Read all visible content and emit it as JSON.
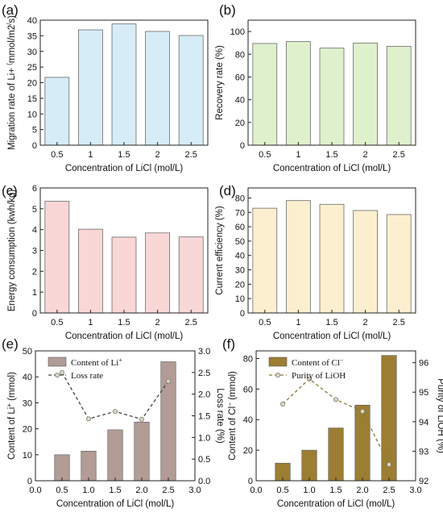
{
  "panels": [
    {
      "id": "a",
      "letter": "(a)",
      "chart_data": {
        "type": "bar",
        "categories": [
          "0.5",
          "1",
          "1.5",
          "2",
          "2.5"
        ],
        "values": [
          21.7,
          36.9,
          38.8,
          36.4,
          35.1
        ],
        "ylim": [
          0,
          40
        ],
        "yticks": [
          "0",
          "5",
          "10",
          "15",
          "20",
          "25",
          "30",
          "35",
          "40"
        ],
        "xlabel": "Concentration of LiCl (mol/L)",
        "ylabel": "Migration rate of Li+ (mmol/m2/s)",
        "bar_fill": "#d6ecf7",
        "bar_stroke": "#6b6b6b"
      }
    },
    {
      "id": "b",
      "letter": "(b)",
      "chart_data": {
        "type": "bar",
        "categories": [
          "0.5",
          "1",
          "1.5",
          "2",
          "2.5"
        ],
        "values": [
          89.5,
          91.2,
          85.4,
          89.9,
          87.0
        ],
        "ylim": [
          0,
          110
        ],
        "yticks": [
          "0",
          "20",
          "40",
          "60",
          "80",
          "100"
        ],
        "xlabel": "Concentration of LiCl (mol/L)",
        "ylabel": "Recovery rate (%)",
        "bar_fill": "#dff0cd",
        "bar_stroke": "#6b6b6b"
      }
    },
    {
      "id": "c",
      "letter": "(c)",
      "chart_data": {
        "type": "bar",
        "categories": [
          "0.5",
          "1",
          "1.5",
          "2",
          "2.5"
        ],
        "values": [
          5.36,
          4.02,
          3.64,
          3.84,
          3.65
        ],
        "ylim": [
          0,
          6
        ],
        "yticks": [
          "0",
          "1",
          "2",
          "3",
          "4",
          "5",
          "6"
        ],
        "xlabel": "Concentration of LiCl (mol/L)",
        "ylabel": "Energy consumption (kwh/kg)",
        "bar_fill": "#f9d7d7",
        "bar_stroke": "#6b6b6b"
      }
    },
    {
      "id": "d",
      "letter": "(d)",
      "chart_data": {
        "type": "bar",
        "categories": [
          "0.5",
          "1",
          "1.5",
          "2",
          "2.5"
        ],
        "values": [
          72.9,
          78.2,
          75.6,
          71.3,
          68.5
        ],
        "ylim": [
          0,
          87
        ],
        "yticks": [
          "0",
          "10",
          "20",
          "30",
          "40",
          "50",
          "60",
          "70",
          "80"
        ],
        "xlabel": "Concentration of LiCl (mol/L)",
        "ylabel": "Current efficiency (%)",
        "bar_fill": "#fcefcf",
        "bar_stroke": "#6b6b6b"
      }
    },
    {
      "id": "e",
      "letter": "(e)",
      "chart_data": {
        "type": "bar+line",
        "x": [
          0.5,
          1.0,
          1.5,
          2.0,
          2.5
        ],
        "xlim": [
          0.0,
          3.0
        ],
        "xticks": [
          "0.0",
          "0.5",
          "1.0",
          "1.5",
          "2.0",
          "2.5",
          "3.0"
        ],
        "bars": {
          "name": "Content of Li+",
          "values": [
            10.0,
            11.4,
            19.6,
            22.6,
            45.8
          ],
          "fill": "#b29c95"
        },
        "line": {
          "name": "Loss rate",
          "values": [
            2.5,
            1.43,
            1.6,
            1.42,
            2.3
          ],
          "color": "#444444"
        },
        "ylim": [
          0,
          50
        ],
        "yticks": [
          "0",
          "10",
          "20",
          "30",
          "40",
          "50"
        ],
        "y2lim": [
          0.0,
          3.0
        ],
        "y2ticks": [
          "0.0",
          "0.5",
          "1.0",
          "1.5",
          "2.0",
          "2.5",
          "3.0"
        ],
        "xlabel": "Concentration of LiCl (mol/L)",
        "ylabel": "Content of Li+ (mmol)",
        "y2label": "Loss rate (%)"
      }
    },
    {
      "id": "f",
      "letter": "(f)",
      "chart_data": {
        "type": "bar+line",
        "x": [
          0.5,
          1.0,
          1.5,
          2.0,
          2.5
        ],
        "xlim": [
          0.0,
          3.0
        ],
        "xticks": [
          "0.0",
          "0.5",
          "1.0",
          "1.5",
          "2.0",
          "2.5",
          "3.0"
        ],
        "bars": {
          "name": "Content of Cl−",
          "values": [
            11.5,
            20.0,
            34.5,
            49.5,
            82.0
          ],
          "fill": "#9c7e33"
        },
        "line": {
          "name": "Purity of LiOH",
          "values": [
            94.6,
            95.45,
            94.75,
            94.35,
            92.55
          ],
          "color": "#8a7a2c"
        },
        "ylim": [
          0,
          85
        ],
        "yticks": [
          "0",
          "20",
          "40",
          "60",
          "80"
        ],
        "y2lim": [
          92,
          96.4
        ],
        "y2ticks": [
          "92",
          "93",
          "94",
          "95",
          "96"
        ],
        "xlabel": "Concentration of LiCl (mol/L)",
        "ylabel": "Content of Cl− (mmol)",
        "y2label": "Purity of LiOH (%)"
      }
    }
  ]
}
